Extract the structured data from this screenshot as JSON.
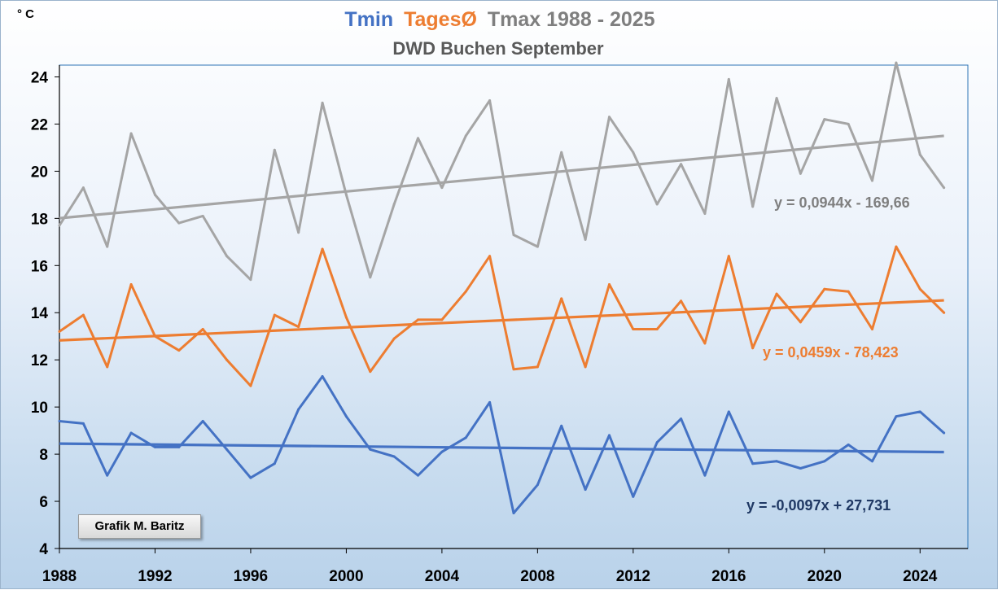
{
  "title": {
    "part_tmin": "Tmin",
    "part_tages": "TagesØ",
    "part_tmax": "Tmax 1988 - 2025",
    "subtitle": "DWD Buchen September"
  },
  "unit_label": "° C",
  "credit": "Grafik M. Baritz",
  "colors": {
    "tmin": "#4472c4",
    "tages": "#ed7d31",
    "tmax": "#a5a5a5",
    "eq_tmin": "#1f3864",
    "eq_tages": "#ed7d31",
    "eq_tmax": "#7f7f7f",
    "title_tmax": "#7f7f7f",
    "title_sub": "#595959"
  },
  "chart_data": {
    "type": "line",
    "x": [
      1988,
      1989,
      1990,
      1991,
      1992,
      1993,
      1994,
      1995,
      1996,
      1997,
      1998,
      1999,
      2000,
      2001,
      2002,
      2003,
      2004,
      2005,
      2006,
      2007,
      2008,
      2009,
      2010,
      2011,
      2012,
      2013,
      2014,
      2015,
      2016,
      2017,
      2018,
      2019,
      2020,
      2021,
      2022,
      2023,
      2024,
      2025
    ],
    "xlim": [
      1988,
      2026
    ],
    "ylim": [
      4,
      24.5
    ],
    "x_ticks": [
      "1988",
      "1992",
      "1996",
      "2000",
      "2004",
      "2008",
      "2012",
      "2016",
      "2020",
      "2024"
    ],
    "y_ticks": [
      "4",
      "6",
      "8",
      "10",
      "12",
      "14",
      "16",
      "18",
      "20",
      "22",
      "24"
    ],
    "series": [
      {
        "name": "Tmin",
        "values": [
          9.4,
          9.3,
          7.1,
          8.9,
          8.3,
          8.3,
          9.4,
          8.2,
          7.0,
          7.6,
          9.9,
          11.3,
          9.6,
          8.2,
          7.9,
          7.1,
          8.1,
          8.7,
          10.2,
          5.5,
          6.7,
          9.2,
          6.5,
          8.8,
          6.2,
          8.5,
          9.5,
          7.1,
          9.8,
          7.6,
          7.7,
          7.4,
          7.7,
          8.4,
          7.7,
          9.6,
          9.8,
          8.9
        ],
        "trend": {
          "slope": -0.0097,
          "intercept": 27.731,
          "label": "y = -0,0097x + 27,731"
        }
      },
      {
        "name": "TagesØ",
        "values": [
          13.2,
          13.9,
          11.7,
          15.2,
          13.0,
          12.4,
          13.3,
          12.0,
          10.9,
          13.9,
          13.4,
          16.7,
          13.8,
          11.5,
          12.9,
          13.7,
          13.7,
          14.9,
          16.4,
          11.6,
          11.7,
          14.6,
          11.7,
          15.2,
          13.3,
          13.3,
          14.5,
          12.7,
          16.4,
          12.5,
          14.8,
          13.6,
          15.0,
          14.9,
          13.3,
          16.8,
          15.0,
          14.0
        ],
        "trend": {
          "slope": 0.0459,
          "intercept": -78.423,
          "label": "y = 0,0459x - 78,423"
        }
      },
      {
        "name": "Tmax",
        "values": [
          17.7,
          19.3,
          16.8,
          21.6,
          19.0,
          17.8,
          18.1,
          16.4,
          15.4,
          20.9,
          17.4,
          22.9,
          19.0,
          15.5,
          18.6,
          21.4,
          19.3,
          21.5,
          23.0,
          17.3,
          16.8,
          20.8,
          17.1,
          22.3,
          20.8,
          18.6,
          20.3,
          18.2,
          23.9,
          18.5,
          23.1,
          19.9,
          22.2,
          22.0,
          19.6,
          24.6,
          20.7,
          19.3
        ],
        "trend": {
          "slope": 0.0944,
          "intercept": -169.66,
          "label": "y = 0,0944x - 169,66"
        }
      }
    ]
  }
}
